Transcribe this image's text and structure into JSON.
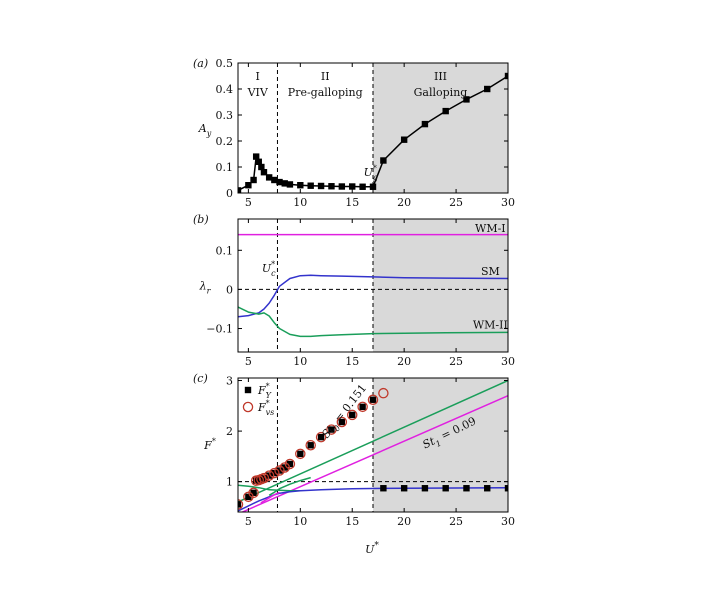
{
  "figure": {
    "xlabel": "U",
    "xlabel_sup": "*"
  },
  "chart_data": [
    {
      "panel_label": "(a)",
      "type": "line",
      "ylabel": "A",
      "ylabel_sub": "y",
      "xlim": [
        4,
        30
      ],
      "ylim": [
        0,
        0.5
      ],
      "xticks": [
        5,
        10,
        15,
        20,
        25,
        30
      ],
      "yticks": [
        0,
        0.1,
        0.2,
        0.3,
        0.4,
        0.5
      ],
      "ytick_labels": [
        "0",
        "0.1",
        "0.2",
        "0.3",
        "0.4",
        "0.5"
      ],
      "shaded_region": [
        17,
        30
      ],
      "vlines": [
        7.8,
        17
      ],
      "regions": [
        {
          "numeral": "I",
          "name": "VIV",
          "x": 5.9
        },
        {
          "numeral": "II",
          "name": "Pre-galloping",
          "x": 12.4
        },
        {
          "numeral": "III",
          "name": "Galloping",
          "x": 23.5
        }
      ],
      "annotation": {
        "text": "U",
        "sup": "*",
        "sub": "g",
        "x": 16.1,
        "y": 0.065
      },
      "series": [
        {
          "name": "A_y",
          "color": "#000000",
          "marker": "square",
          "x": [
            4,
            5,
            5.5,
            5.75,
            6,
            6.25,
            6.5,
            7,
            7.5,
            8,
            8.5,
            9,
            10,
            11,
            12,
            13,
            14,
            15,
            16,
            17,
            18,
            20,
            22,
            24,
            26,
            28,
            30
          ],
          "y": [
            0.01,
            0.03,
            0.05,
            0.14,
            0.12,
            0.1,
            0.08,
            0.06,
            0.05,
            0.042,
            0.037,
            0.033,
            0.03,
            0.028,
            0.027,
            0.026,
            0.025,
            0.025,
            0.024,
            0.024,
            0.125,
            0.205,
            0.265,
            0.315,
            0.36,
            0.4,
            0.45
          ]
        }
      ]
    },
    {
      "panel_label": "(b)",
      "type": "line",
      "ylabel": "λ",
      "ylabel_sub": "r",
      "xlim": [
        4,
        30
      ],
      "ylim": [
        -0.16,
        0.18
      ],
      "xticks": [
        5,
        10,
        15,
        20,
        25,
        30
      ],
      "yticks": [
        -0.1,
        0,
        0.1
      ],
      "ytick_labels": [
        "−0.1",
        "0",
        "0.1"
      ],
      "shaded_region": [
        17,
        30
      ],
      "vlines": [
        7.8,
        17
      ],
      "hline": 0,
      "annotation": {
        "text": "U",
        "sup": "*",
        "sub": "c",
        "x": 6.3,
        "y": 0.045
      },
      "series": [
        {
          "name": "WM-I",
          "color": "#e020e0",
          "x": [
            4,
            8,
            12,
            17,
            22,
            26,
            30
          ],
          "y": [
            0.14,
            0.14,
            0.14,
            0.14,
            0.14,
            0.14,
            0.14
          ],
          "label_x": 28.3,
          "label_y": 0.155
        },
        {
          "name": "SM",
          "color": "#3333cc",
          "x": [
            4,
            5,
            6,
            6.5,
            7,
            7.5,
            8,
            9,
            10,
            11,
            12,
            14,
            17,
            20,
            24,
            30
          ],
          "y": [
            -0.07,
            -0.067,
            -0.06,
            -0.05,
            -0.035,
            -0.015,
            0.008,
            0.028,
            0.035,
            0.036,
            0.035,
            0.034,
            0.032,
            0.03,
            0.029,
            0.028
          ],
          "label_x": 28.3,
          "label_y": 0.045
        },
        {
          "name": "WM-II",
          "color": "#1a9e5a",
          "x": [
            4,
            5,
            6,
            6.5,
            7,
            7.5,
            8,
            9,
            10,
            11,
            12,
            14,
            17,
            20,
            24,
            30
          ],
          "y": [
            -0.045,
            -0.058,
            -0.063,
            -0.06,
            -0.068,
            -0.085,
            -0.1,
            -0.115,
            -0.12,
            -0.12,
            -0.118,
            -0.116,
            -0.113,
            -0.112,
            -0.111,
            -0.11
          ],
          "label_x": 28.3,
          "label_y": -0.092
        }
      ]
    },
    {
      "panel_label": "(c)",
      "type": "line",
      "ylabel": "F",
      "ylabel_sup": "*",
      "xlim": [
        4,
        30
      ],
      "ylim": [
        0.4,
        3.05
      ],
      "xticks": [
        5,
        10,
        15,
        20,
        25,
        30
      ],
      "xtick_labels": [
        "5",
        "10",
        "15",
        "20",
        "25",
        "30"
      ],
      "yticks": [
        1,
        2,
        3
      ],
      "ytick_labels": [
        "1",
        "2",
        "3"
      ],
      "shaded_region": [
        17,
        30
      ],
      "vlines": [
        7.8,
        17
      ],
      "hline": 1,
      "legend": {
        "position": "top-left",
        "entries": [
          {
            "text": "F",
            "sup": "*",
            "sub": "Y",
            "marker": "square"
          },
          {
            "text": "F",
            "sup": "*",
            "sub": "vs",
            "marker": "open-circle"
          }
        ]
      },
      "line_labels": [
        {
          "text": "St",
          "sub": "0",
          "value": " = 0.151",
          "x": 14.5,
          "y": 2.35,
          "angle": -52
        },
        {
          "text": "St",
          "sub": "1",
          "value": " = 0.09",
          "x": 24.5,
          "y": 1.9,
          "angle": -26
        }
      ],
      "series": [
        {
          "name": "Strouhal St0 line",
          "color": "#1a9e5a",
          "x": [
            4,
            30
          ],
          "y": [
            0.6,
            3.0
          ]
        },
        {
          "name": "Strouhal St1 line",
          "color": "#e020e0",
          "x": [
            4,
            30
          ],
          "y": [
            0.36,
            2.7
          ]
        },
        {
          "name": "frequency branch 1",
          "color": "#1a9e5a",
          "x": [
            4,
            5,
            6,
            7,
            8,
            9,
            10
          ],
          "y": [
            0.93,
            0.91,
            0.88,
            0.84,
            0.83,
            0.82,
            0.82
          ]
        },
        {
          "name": "frequency branch 2",
          "color": "#3333cc",
          "x": [
            4,
            5,
            6,
            7,
            7.5,
            8,
            9,
            10,
            12,
            15,
            20,
            25,
            30
          ],
          "y": [
            0.42,
            0.52,
            0.62,
            0.7,
            0.74,
            0.77,
            0.8,
            0.82,
            0.84,
            0.86,
            0.87,
            0.875,
            0.88
          ]
        },
        {
          "name": "frequency branch 3",
          "color": "#e020e0",
          "x": [
            6.2,
            6.6,
            7,
            7.5,
            8
          ],
          "y": [
            0.58,
            0.63,
            0.68,
            0.74,
            0.79
          ]
        },
        {
          "name": "frequency branch 4",
          "color": "#1a9e5a",
          "x": [
            7,
            7.5,
            8,
            9,
            10,
            11
          ],
          "y": [
            0.73,
            0.79,
            0.86,
            0.95,
            1.02,
            1.08
          ]
        }
      ],
      "markers": [
        {
          "name": "F*_Y",
          "marker": "square",
          "color": "#000000",
          "x": [
            4,
            5,
            5.5,
            5.75,
            6,
            6.25,
            6.5,
            7,
            7.5,
            8,
            8.5,
            9,
            10,
            11,
            12,
            13,
            14,
            15,
            16,
            17,
            18,
            20,
            22,
            24,
            26,
            28,
            30
          ],
          "y": [
            0.55,
            0.7,
            0.78,
            1.02,
            1.03,
            1.05,
            1.07,
            1.12,
            1.17,
            1.22,
            1.28,
            1.35,
            1.55,
            1.72,
            1.88,
            2.03,
            2.18,
            2.32,
            2.48,
            2.62,
            0.87,
            0.87,
            0.87,
            0.87,
            0.87,
            0.87,
            0.87
          ]
        },
        {
          "name": "F*_vs",
          "marker": "open-circle",
          "color": "#c0392b",
          "x": [
            4,
            5,
            5.5,
            5.75,
            6,
            6.25,
            6.5,
            7,
            7.5,
            8,
            8.5,
            9,
            10,
            11,
            12,
            13,
            14,
            15,
            16,
            17,
            18
          ],
          "y": [
            0.55,
            0.7,
            0.78,
            1.02,
            1.03,
            1.05,
            1.07,
            1.12,
            1.17,
            1.22,
            1.28,
            1.35,
            1.55,
            1.72,
            1.88,
            2.03,
            2.18,
            2.32,
            2.48,
            2.62,
            2.75
          ]
        }
      ]
    }
  ]
}
